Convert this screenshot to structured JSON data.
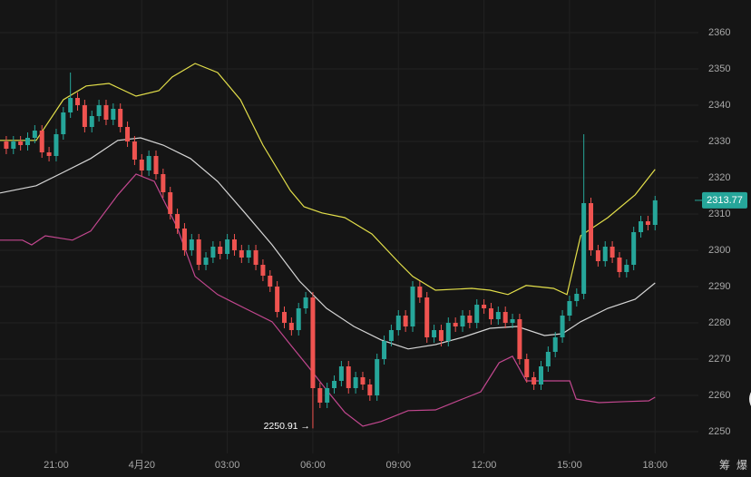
{
  "chart_data": {
    "type": "candlestick",
    "xlim": [
      -1.97,
      22.2
    ],
    "ylim": [
      2244,
      2369
    ],
    "xticks": [
      {
        "value": 0,
        "label": "21:00"
      },
      {
        "value": 3,
        "label": "4月20"
      },
      {
        "value": 6,
        "label": "03:00"
      },
      {
        "value": 9,
        "label": "06:00"
      },
      {
        "value": 12,
        "label": "09:00"
      },
      {
        "value": 15,
        "label": "12:00"
      },
      {
        "value": 18,
        "label": "15:00"
      },
      {
        "value": 21,
        "label": "18:00"
      }
    ],
    "yticks": [
      2250,
      2260,
      2270,
      2280,
      2290,
      2300,
      2310,
      2320,
      2330,
      2340,
      2350,
      2360
    ],
    "grid": true,
    "up_color": "#26a69a",
    "down_color": "#ef5350",
    "candles": {
      "x": [
        -1.75,
        -1.5,
        -1.25,
        -1,
        -0.75,
        -0.5,
        -0.25,
        0,
        0.25,
        0.5,
        0.75,
        1,
        1.25,
        1.5,
        1.75,
        2,
        2.25,
        2.5,
        2.75,
        3,
        3.25,
        3.5,
        3.75,
        4,
        4.25,
        4.5,
        4.75,
        5,
        5.25,
        5.5,
        5.75,
        6,
        6.25,
        6.5,
        6.75,
        7,
        7.25,
        7.5,
        7.75,
        8,
        8.25,
        8.5,
        8.75,
        9,
        9.25,
        9.5,
        9.75,
        10,
        10.25,
        10.5,
        10.75,
        11,
        11.25,
        11.5,
        11.75,
        12,
        12.25,
        12.5,
        12.75,
        13,
        13.25,
        13.5,
        13.75,
        14,
        14.25,
        14.5,
        14.75,
        15,
        15.25,
        15.5,
        15.75,
        16,
        16.25,
        16.5,
        16.75,
        17,
        17.25,
        17.5,
        17.75,
        18,
        18.25,
        18.5,
        18.75,
        19,
        19.25,
        19.5,
        19.75,
        20,
        20.25,
        20.5,
        20.75,
        21
      ],
      "open": [
        2330,
        2328,
        2330,
        2329,
        2331,
        2333,
        2327,
        2326,
        2332,
        2338,
        2342,
        2340,
        2334,
        2337,
        2340,
        2336,
        2339,
        2334,
        2330,
        2325,
        2322,
        2326,
        2321,
        2316,
        2310,
        2306,
        2300,
        2303,
        2296,
        2298,
        2301,
        2299,
        2303,
        2300,
        2298,
        2300,
        2296,
        2293,
        2290,
        2283,
        2280,
        2278,
        2284,
        2287,
        2262,
        2258,
        2262,
        2264,
        2268,
        2262,
        2265,
        2263,
        2260,
        2270,
        2275,
        2278,
        2282,
        2279,
        2290,
        2287,
        2276,
        2278,
        2275,
        2280,
        2279,
        2282,
        2280,
        2285,
        2284,
        2281,
        2283,
        2280,
        2281,
        2270,
        2265,
        2263,
        2268,
        2272,
        2276,
        2282,
        2286,
        2288,
        2313,
        2300,
        2297,
        2301,
        2298,
        2294,
        2296,
        2305,
        2308,
        2307
      ],
      "high": [
        2331.5,
        2331.5,
        2331.5,
        2332.5,
        2334.5,
        2334.5,
        2328.5,
        2333.5,
        2339.5,
        2349,
        2343.5,
        2341.5,
        2338.5,
        2341.5,
        2341.5,
        2340.5,
        2340.5,
        2335.5,
        2331.5,
        2326.5,
        2327.5,
        2327.5,
        2322.5,
        2317.5,
        2311.5,
        2307.5,
        2304.5,
        2304.5,
        2299.5,
        2302.5,
        2302.5,
        2304.5,
        2304.5,
        2301.5,
        2301.5,
        2301.5,
        2297.5,
        2294.5,
        2291.5,
        2284.5,
        2281.5,
        2285.5,
        2288.5,
        2288.5,
        2263.5,
        2263.5,
        2265.5,
        2269.5,
        2269.5,
        2266.5,
        2266.5,
        2264.5,
        2271.5,
        2276.5,
        2279.5,
        2283.5,
        2283.5,
        2291.5,
        2291.5,
        2288.5,
        2279.5,
        2279.5,
        2281.5,
        2281.5,
        2283.5,
        2283.5,
        2286.5,
        2286.5,
        2285.5,
        2284.5,
        2284.5,
        2282.5,
        2282.5,
        2271.5,
        2266.5,
        2269.5,
        2273.5,
        2277.5,
        2283.5,
        2287.5,
        2289.5,
        2332,
        2314.5,
        2301.5,
        2302.5,
        2302.5,
        2299.5,
        2297.5,
        2306.5,
        2309.5,
        2309.5,
        2315
      ],
      "low": [
        2326.5,
        2326.5,
        2327.5,
        2327.5,
        2329.5,
        2325.5,
        2324.5,
        2324.5,
        2330.5,
        2336.5,
        2338.5,
        2332.5,
        2332.5,
        2335.5,
        2334.5,
        2334.5,
        2332.5,
        2328.5,
        2323.5,
        2320.5,
        2320.5,
        2319.5,
        2314.5,
        2308.5,
        2304.5,
        2298.5,
        2298.5,
        2294.5,
        2294.5,
        2296.5,
        2297.5,
        2297.5,
        2298.5,
        2296.5,
        2296.5,
        2294.5,
        2291.5,
        2288.5,
        2281.5,
        2278.5,
        2276.5,
        2276.5,
        2282.5,
        2250.91,
        2256.5,
        2256.5,
        2260.5,
        2262.5,
        2260.5,
        2260.5,
        2261.5,
        2258.5,
        2258.5,
        2268.5,
        2273.5,
        2276.5,
        2277.5,
        2277.5,
        2285.5,
        2274.5,
        2274.5,
        2273.5,
        2273.5,
        2277.5,
        2277.5,
        2278.5,
        2278.5,
        2282.5,
        2279.5,
        2279.5,
        2278.5,
        2278.5,
        2268.5,
        2263.5,
        2261.5,
        2261.5,
        2266.5,
        2270.5,
        2274.5,
        2280.5,
        2284.5,
        2286.5,
        2298.5,
        2295.5,
        2295.5,
        2296.5,
        2292.5,
        2292.5,
        2294.5,
        2303.5,
        2305.5,
        2305.5
      ],
      "close": [
        2328,
        2330,
        2329,
        2331,
        2333,
        2327,
        2326,
        2332,
        2338,
        2342,
        2340,
        2334,
        2337,
        2340,
        2336,
        2339,
        2334,
        2330,
        2325,
        2322,
        2326,
        2321,
        2316,
        2310,
        2306,
        2300,
        2303,
        2296,
        2298,
        2301,
        2299,
        2303,
        2300,
        2298,
        2300,
        2296,
        2293,
        2290,
        2283,
        2280,
        2278,
        2284,
        2287,
        2262,
        2258,
        2262,
        2264,
        2268,
        2262,
        2265,
        2263,
        2260,
        2270,
        2275,
        2278,
        2282,
        2279,
        2290,
        2287,
        2276,
        2278,
        2275,
        2280,
        2279,
        2282,
        2280,
        2285,
        2284,
        2281,
        2283,
        2280,
        2281,
        2270,
        2265,
        2263,
        2268,
        2272,
        2276,
        2282,
        2286,
        2288,
        2313,
        2300,
        2297,
        2301,
        2298,
        2294,
        2296,
        2305,
        2308,
        2307,
        2313.77
      ]
    },
    "bands": [
      {
        "color": "#e3df4a",
        "x": [
          -1.97,
          -0.7,
          0.25,
          1.05,
          1.85,
          2.8,
          3.6,
          4.07,
          4.87,
          5.66,
          6.46,
          7.25,
          8.21,
          8.69,
          9.32,
          10.12,
          11.07,
          12.03,
          12.5,
          13.3,
          14.57,
          15.21,
          15.84,
          16.48,
          17.44,
          17.91,
          18.39,
          19.34,
          20.3,
          21.0
        ],
        "values": [
          2330.3,
          2330.3,
          2341.5,
          2345.3,
          2346,
          2342.5,
          2344,
          2347.8,
          2351.5,
          2349,
          2341.5,
          2329,
          2316.5,
          2312,
          2310.3,
          2309,
          2304.5,
          2296.5,
          2292.8,
          2289,
          2289.5,
          2289,
          2287.8,
          2290.3,
          2289.5,
          2287.8,
          2304,
          2309,
          2315.3,
          2322.3
        ]
      },
      {
        "color": "#d6d6d6",
        "x": [
          -1.97,
          -0.7,
          0.25,
          1.21,
          2.16,
          2.96,
          3.75,
          4.71,
          5.66,
          6.62,
          7.57,
          8.53,
          9.48,
          10.44,
          11.39,
          12.34,
          13.3,
          14.25,
          15.21,
          16.16,
          17.12,
          17.75,
          18.39,
          19.34,
          20.3,
          21.0
        ],
        "values": [
          2315.8,
          2317.8,
          2321.5,
          2325.3,
          2330.3,
          2331,
          2329,
          2325.3,
          2319,
          2310.3,
          2301.5,
          2291.5,
          2284,
          2279,
          2275.3,
          2272.8,
          2274,
          2276,
          2278.5,
          2279,
          2276.5,
          2277,
          2280.3,
          2284,
          2286.5,
          2291
        ]
      },
      {
        "color": "#c2478f",
        "x": [
          -1.97,
          -1.18,
          -0.86,
          -0.38,
          0.57,
          1.21,
          2.16,
          2.8,
          3.44,
          4.23,
          4.87,
          5.66,
          6.62,
          7.57,
          8.21,
          8.85,
          9.48,
          10.12,
          10.75,
          11.39,
          12.34,
          13.3,
          14.25,
          14.89,
          15.53,
          16.0,
          16.48,
          17.12,
          18.01,
          18.23,
          19.03,
          19.98,
          20.78,
          21.0
        ],
        "values": [
          2302.8,
          2302.8,
          2301.5,
          2304,
          2302.8,
          2305.3,
          2315.3,
          2321,
          2319,
          2306.5,
          2292.8,
          2287.8,
          2284,
          2280.3,
          2274,
          2267.8,
          2261.5,
          2255.3,
          2251.5,
          2252.8,
          2255.8,
          2256,
          2259,
          2261,
          2269,
          2270.8,
          2264,
          2264,
          2264,
          2259,
          2258,
          2258.3,
          2258.5,
          2259.5
        ]
      }
    ],
    "low_annotation": "2250.91 →",
    "toolbar": [
      "筹",
      "爆"
    ]
  }
}
